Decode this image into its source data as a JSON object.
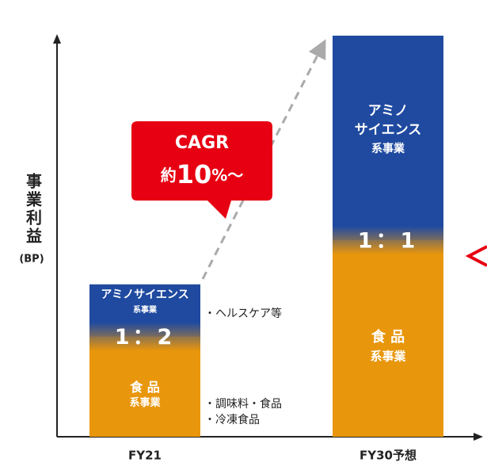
{
  "chart_data": {
    "type": "stacked_bar",
    "y_axis_label": "事業利益",
    "y_axis_unit": "(BP)",
    "categories": [
      "FY21",
      "FY30予想"
    ],
    "ylim": [
      0,
      100
    ],
    "series": [
      {
        "color": "#e8960c",
        "values": [
          25,
          49
        ],
        "segment_labels": [
          [
            "食 品",
            "系事業"
          ],
          [
            "食 品",
            "系事業"
          ]
        ]
      },
      {
        "color": "#1f4aa0",
        "values": [
          13,
          51
        ],
        "segment_labels": [
          [
            "アミノサイエンス",
            "系事業"
          ],
          [
            "アミノ",
            "サイエンス",
            "系事業"
          ]
        ]
      }
    ],
    "ratio_labels": [
      "1：2",
      "1：1"
    ],
    "callout": {
      "title": "CAGR",
      "prefix": "約",
      "number": "10",
      "suffix": "%～"
    },
    "notes_amino": [
      "・ヘルスケア等"
    ],
    "notes_food": [
      "・調味料・食品",
      "・冷凍食品"
    ]
  }
}
